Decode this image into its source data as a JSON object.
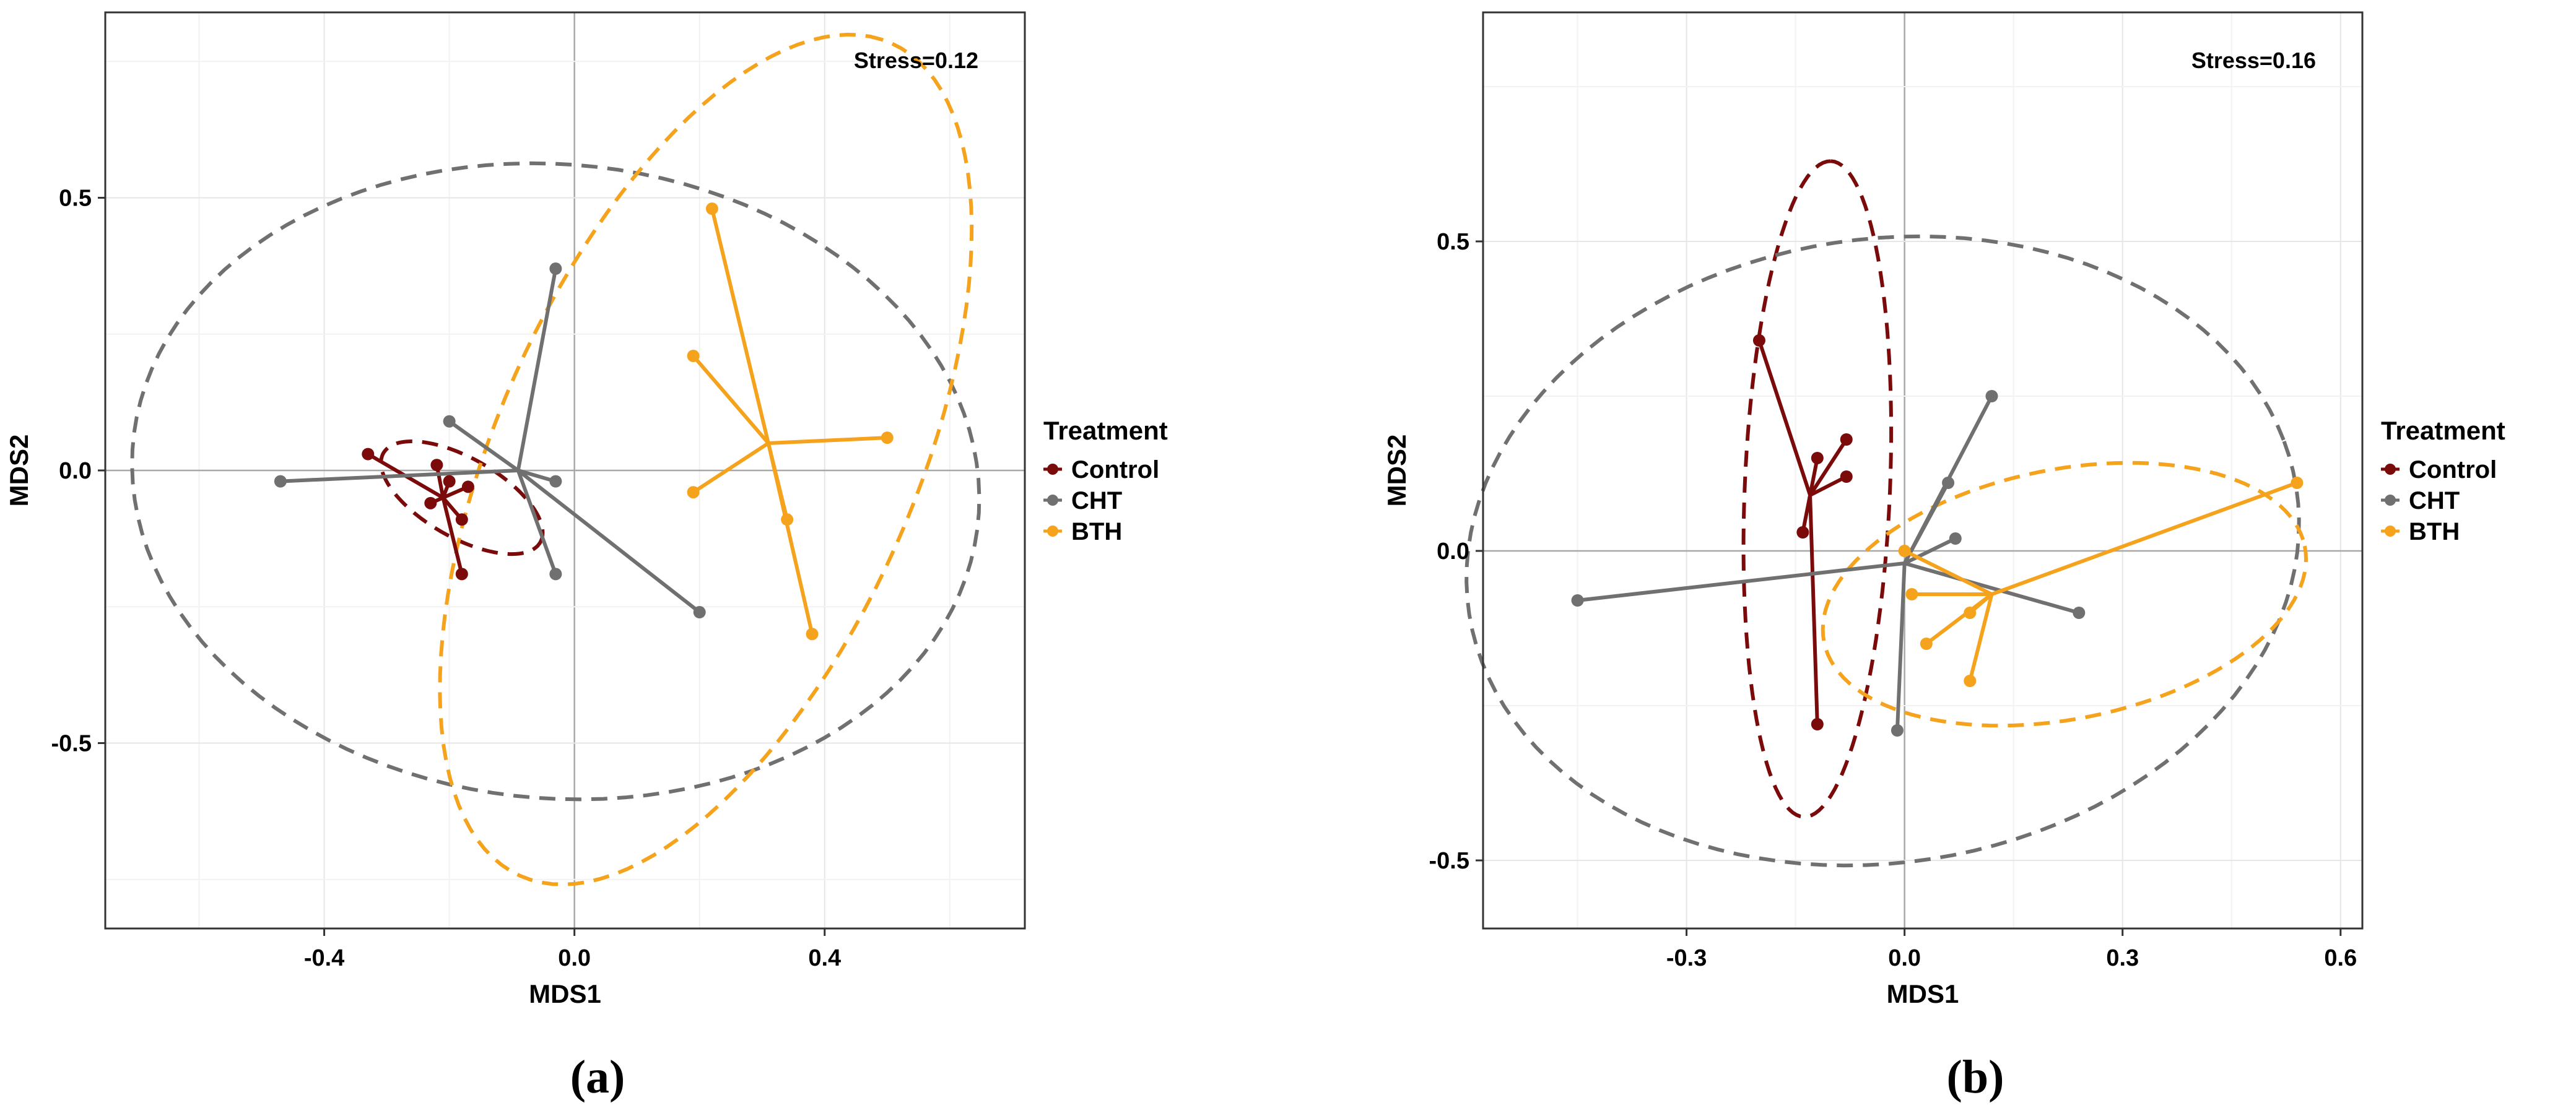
{
  "figure": {
    "panel_labels": [
      "(a)",
      "(b)"
    ]
  },
  "chart_data": [
    {
      "type": "scatter",
      "title": "",
      "annotation": "Stress=0.12",
      "xlabel": "MDS1",
      "ylabel": "MDS2",
      "xlim": [
        -0.75,
        0.72
      ],
      "ylim": [
        -0.84,
        0.84
      ],
      "x_ticks": [
        -0.4,
        0.0,
        0.4
      ],
      "x_tick_labels": [
        "-0.4",
        "0.0",
        "0.4"
      ],
      "y_ticks": [
        -0.5,
        0.0,
        0.5
      ],
      "y_tick_labels": [
        "-0.5",
        "0.0",
        "0.5"
      ],
      "grid": true,
      "zero_lines": true,
      "legend": {
        "title": "Treatment",
        "position": "right",
        "entries": [
          {
            "label": "Control",
            "color": "#7b0a0a"
          },
          {
            "label": "CHT",
            "color": "#707070"
          },
          {
            "label": "BTH",
            "color": "#f5a31c"
          }
        ]
      },
      "series": [
        {
          "name": "Control",
          "color": "#7b0a0a",
          "centroid": [
            -0.21,
            -0.05
          ],
          "points": [
            [
              -0.33,
              0.03
            ],
            [
              -0.22,
              0.01
            ],
            [
              -0.2,
              -0.02
            ],
            [
              -0.23,
              -0.06
            ],
            [
              -0.17,
              -0.03
            ],
            [
              -0.18,
              -0.09
            ],
            [
              -0.18,
              -0.19
            ]
          ],
          "ellipse": {
            "center": [
              -0.18,
              -0.05
            ],
            "semi_axes": [
              0.15,
              0.07
            ],
            "angle_deg": -35
          }
        },
        {
          "name": "CHT",
          "color": "#707070",
          "centroid": [
            -0.09,
            0.0
          ],
          "points": [
            [
              -0.03,
              0.37
            ],
            [
              -0.2,
              0.09
            ],
            [
              -0.47,
              -0.02
            ],
            [
              -0.03,
              -0.02
            ],
            [
              -0.03,
              -0.19
            ],
            [
              0.2,
              -0.26
            ]
          ],
          "ellipse": {
            "center": [
              -0.03,
              -0.02
            ],
            "semi_axes": [
              0.68,
              0.58
            ],
            "angle_deg": -10
          }
        },
        {
          "name": "BTH",
          "color": "#f5a31c",
          "centroid": [
            0.31,
            0.05
          ],
          "points": [
            [
              0.22,
              0.48
            ],
            [
              0.19,
              0.21
            ],
            [
              0.5,
              0.06
            ],
            [
              0.19,
              -0.04
            ],
            [
              0.34,
              -0.09
            ],
            [
              0.38,
              -0.3
            ]
          ],
          "ellipse": {
            "center": [
              0.21,
              0.02
            ],
            "semi_axes": [
              0.82,
              0.34
            ],
            "angle_deg": 70
          }
        }
      ]
    },
    {
      "type": "scatter",
      "title": "",
      "annotation": "Stress=0.16",
      "xlabel": "MDS1",
      "ylabel": "MDS2",
      "xlim": [
        -0.58,
        0.63
      ],
      "ylim": [
        -0.61,
        0.87
      ],
      "x_ticks": [
        -0.3,
        0.0,
        0.3,
        0.6
      ],
      "x_tick_labels": [
        "-0.3",
        "0.0",
        "0.3",
        "0.6"
      ],
      "y_ticks": [
        -0.5,
        0.0,
        0.5
      ],
      "y_tick_labels": [
        "-0.5",
        "0.0",
        "0.5"
      ],
      "grid": true,
      "zero_lines": true,
      "legend": {
        "title": "Treatment",
        "position": "right",
        "entries": [
          {
            "label": "Control",
            "color": "#7b0a0a"
          },
          {
            "label": "CHT",
            "color": "#707070"
          },
          {
            "label": "BTH",
            "color": "#f5a31c"
          }
        ]
      },
      "series": [
        {
          "name": "Control",
          "color": "#7b0a0a",
          "centroid": [
            -0.13,
            0.09
          ],
          "points": [
            [
              -0.2,
              0.34
            ],
            [
              -0.08,
              0.18
            ],
            [
              -0.12,
              0.15
            ],
            [
              -0.08,
              0.12
            ],
            [
              -0.14,
              0.03
            ],
            [
              -0.12,
              -0.28
            ]
          ],
          "ellipse": {
            "center": [
              -0.12,
              0.1
            ],
            "semi_axes": [
              0.53,
              0.1
            ],
            "angle_deg": 88
          }
        },
        {
          "name": "CHT",
          "color": "#707070",
          "centroid": [
            0.0,
            -0.02
          ],
          "points": [
            [
              0.12,
              0.25
            ],
            [
              0.06,
              0.11
            ],
            [
              0.07,
              0.02
            ],
            [
              -0.45,
              -0.08
            ],
            [
              0.24,
              -0.1
            ],
            [
              -0.01,
              -0.29
            ]
          ],
          "ellipse": {
            "center": [
              -0.03,
              0.0
            ],
            "semi_axes": [
              0.58,
              0.5
            ],
            "angle_deg": 18
          }
        },
        {
          "name": "BTH",
          "color": "#f5a31c",
          "centroid": [
            0.12,
            -0.07
          ],
          "points": [
            [
              0.54,
              0.11
            ],
            [
              0.0,
              0.0
            ],
            [
              0.01,
              -0.07
            ],
            [
              0.09,
              -0.1
            ],
            [
              0.03,
              -0.15
            ],
            [
              0.09,
              -0.21
            ]
          ],
          "ellipse": {
            "center": [
              0.22,
              -0.07
            ],
            "semi_axes": [
              0.34,
              0.2
            ],
            "angle_deg": 15
          }
        }
      ]
    }
  ]
}
